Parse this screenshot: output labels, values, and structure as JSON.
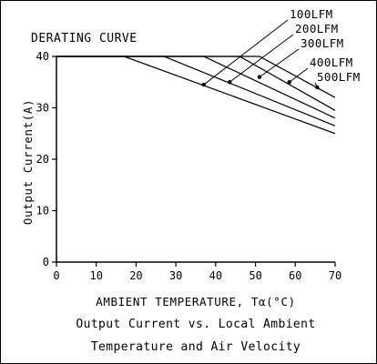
{
  "chart_data": {
    "type": "line",
    "title": "DERATING CURVE",
    "xlabel": "AMBIENT TEMPERATURE, Tα(°C)",
    "ylabel": "Output Current(A)",
    "caption": [
      "Output Current vs. Local Ambient",
      "Temperature and Air Velocity"
    ],
    "xlim": [
      0,
      70
    ],
    "ylim": [
      0,
      40
    ],
    "x_ticks": [
      "0",
      "10",
      "20",
      "30",
      "40",
      "50",
      "60",
      "70"
    ],
    "y_ticks": [
      "0",
      "10",
      "20",
      "30",
      "40"
    ],
    "grid": false,
    "series": [
      {
        "name": "100LFM",
        "x": [
          0,
          17,
          70
        ],
        "y": [
          40,
          40,
          25
        ]
      },
      {
        "name": "200LFM",
        "x": [
          0,
          27,
          70
        ],
        "y": [
          40,
          40,
          26.5
        ]
      },
      {
        "name": "300LFM",
        "x": [
          0,
          37,
          70
        ],
        "y": [
          40,
          40,
          28
        ]
      },
      {
        "name": "400LFM",
        "x": [
          0,
          46,
          70
        ],
        "y": [
          40,
          40,
          29.5
        ]
      },
      {
        "name": "500LFM",
        "x": [
          0,
          51,
          70
        ],
        "y": [
          40,
          40,
          32
        ]
      }
    ],
    "markers": [
      {
        "x": 37,
        "y": 34.5
      },
      {
        "x": 43.5,
        "y": 35
      },
      {
        "x": 51,
        "y": 36
      },
      {
        "x": 58.5,
        "y": 35
      },
      {
        "x": 65.5,
        "y": 34
      }
    ]
  }
}
